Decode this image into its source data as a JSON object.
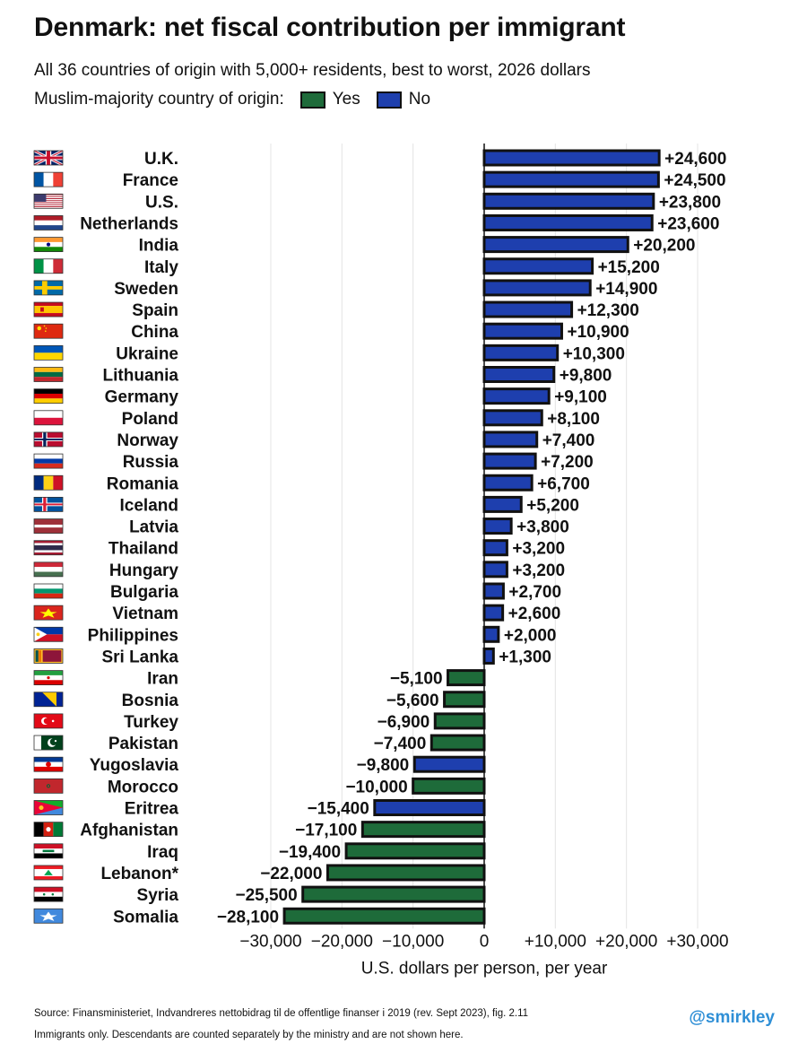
{
  "header": {
    "title": "Denmark: net fiscal contribution per immigrant",
    "subtitle": "All 36 countries of origin with 5,000+ residents, best to worst, 2026 dollars",
    "legend_label": "Muslim-majority country of origin:",
    "legend_yes": "Yes",
    "legend_no": "No"
  },
  "colors": {
    "yes": "#1e6b3a",
    "no": "#1e3fae",
    "outline": "#111111",
    "grid": "#e4e4e4"
  },
  "chart_data": {
    "type": "bar",
    "orientation": "horizontal",
    "title": "Denmark: net fiscal contribution per immigrant",
    "xlabel": "U.S. dollars per person, per year",
    "xlim": [
      -30000,
      30000
    ],
    "xticks": [
      -30000,
      -20000,
      -10000,
      0,
      10000,
      20000,
      30000
    ],
    "xtick_labels": [
      "−30,000",
      "−20,000",
      "−10,000",
      "0",
      "+10,000",
      "+20,000",
      "+30,000"
    ],
    "grid": true,
    "legend_position": "top-left",
    "categories": [
      "U.K.",
      "France",
      "U.S.",
      "Netherlands",
      "India",
      "Italy",
      "Sweden",
      "Spain",
      "China",
      "Ukraine",
      "Lithuania",
      "Germany",
      "Poland",
      "Norway",
      "Russia",
      "Romania",
      "Iceland",
      "Latvia",
      "Thailand",
      "Hungary",
      "Bulgaria",
      "Vietnam",
      "Philippines",
      "Sri Lanka",
      "Iran",
      "Bosnia",
      "Turkey",
      "Pakistan",
      "Yugoslavia",
      "Morocco",
      "Eritrea",
      "Afghanistan",
      "Iraq",
      "Lebanon*",
      "Syria",
      "Somalia"
    ],
    "flags": [
      "uk",
      "france",
      "us",
      "netherlands",
      "india",
      "italy",
      "sweden",
      "spain",
      "china",
      "ukraine",
      "lithuania",
      "germany",
      "poland",
      "norway",
      "russia",
      "romania",
      "iceland",
      "latvia",
      "thailand",
      "hungary",
      "bulgaria",
      "vietnam",
      "philippines",
      "sri-lanka",
      "iran",
      "bosnia",
      "turkey",
      "pakistan",
      "yugoslavia",
      "morocco",
      "eritrea",
      "afghanistan",
      "iraq",
      "lebanon",
      "syria",
      "somalia"
    ],
    "values": [
      24600,
      24500,
      23800,
      23600,
      20200,
      15200,
      14900,
      12300,
      10900,
      10300,
      9800,
      9100,
      8100,
      7400,
      7200,
      6700,
      5200,
      3800,
      3200,
      3200,
      2700,
      2600,
      2000,
      1300,
      -5100,
      -5600,
      -6900,
      -7400,
      -9800,
      -10000,
      -15400,
      -17100,
      -19400,
      -22000,
      -25500,
      -28100
    ],
    "value_labels": [
      "+24,600",
      "+24,500",
      "+23,800",
      "+23,600",
      "+20,200",
      "+15,200",
      "+14,900",
      "+12,300",
      "+10,900",
      "+10,300",
      "+9,800",
      "+9,100",
      "+8,100",
      "+7,400",
      "+7,200",
      "+6,700",
      "+5,200",
      "+3,800",
      "+3,200",
      "+3,200",
      "+2,700",
      "+2,600",
      "+2,000",
      "+1,300",
      "−5,100",
      "−5,600",
      "−6,900",
      "−7,400",
      "−9,800",
      "−10,000",
      "−15,400",
      "−17,100",
      "−19,400",
      "−22,000",
      "−25,500",
      "−28,100"
    ],
    "muslim_majority": [
      "No",
      "No",
      "No",
      "No",
      "No",
      "No",
      "No",
      "No",
      "No",
      "No",
      "No",
      "No",
      "No",
      "No",
      "No",
      "No",
      "No",
      "No",
      "No",
      "No",
      "No",
      "No",
      "No",
      "No",
      "Yes",
      "Yes",
      "Yes",
      "Yes",
      "No",
      "Yes",
      "No",
      "Yes",
      "Yes",
      "Yes",
      "Yes",
      "Yes"
    ]
  },
  "footer": {
    "source": "Source: Finansministeriet, Indvandreres nettobidrag til de offentlige finanser i 2019 (rev. Sept 2023), fig. 2.11",
    "note": "Immigrants only. Descendants are counted separately by the ministry and are not shown here.",
    "handle": "@smirkley"
  }
}
